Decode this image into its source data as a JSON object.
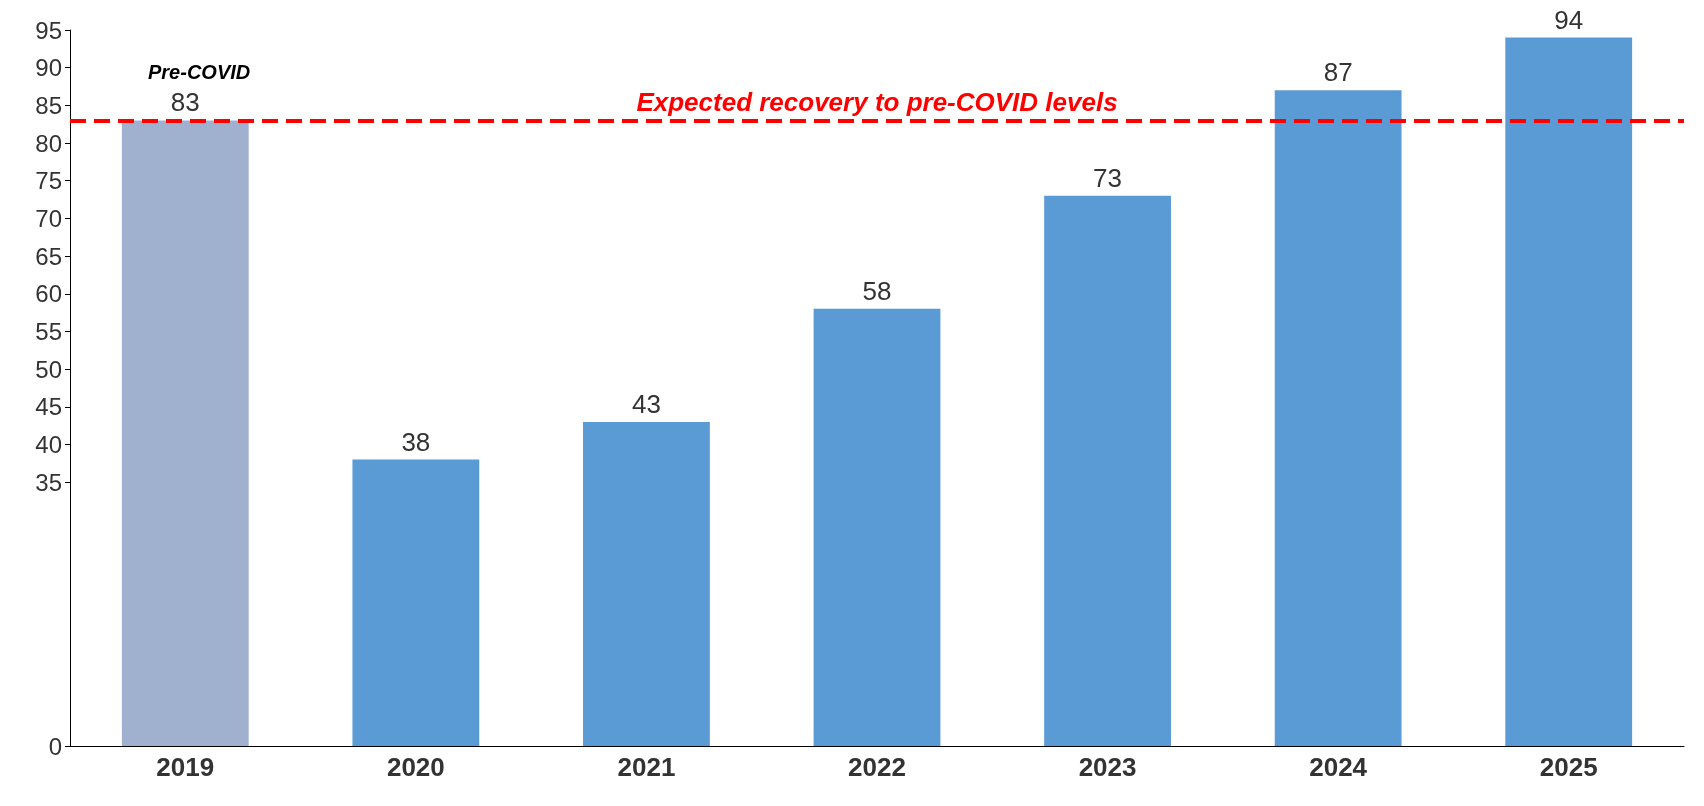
{
  "chart_data": {
    "type": "bar",
    "categories": [
      "2019",
      "2020",
      "2021",
      "2022",
      "2023",
      "2024",
      "2025"
    ],
    "values": [
      83,
      38,
      43,
      58,
      73,
      87,
      94
    ],
    "colors": [
      "#9fb1cf",
      "#5b9bd5",
      "#5b9bd5",
      "#5b9bd5",
      "#5b9bd5",
      "#5b9bd5",
      "#5b9bd5"
    ],
    "ylim": [
      0,
      95
    ],
    "yticks": [
      0,
      35,
      40,
      45,
      50,
      55,
      60,
      65,
      70,
      75,
      80,
      85,
      90,
      95
    ],
    "data_labels": true,
    "grid": false,
    "ref_lines": [
      {
        "axis": "y",
        "value": 83,
        "label": "Expected recovery to pre-COVID levels",
        "color": "#ff0000",
        "line_style": "dashed"
      }
    ],
    "annotations": [
      "Pre-COVID"
    ]
  }
}
